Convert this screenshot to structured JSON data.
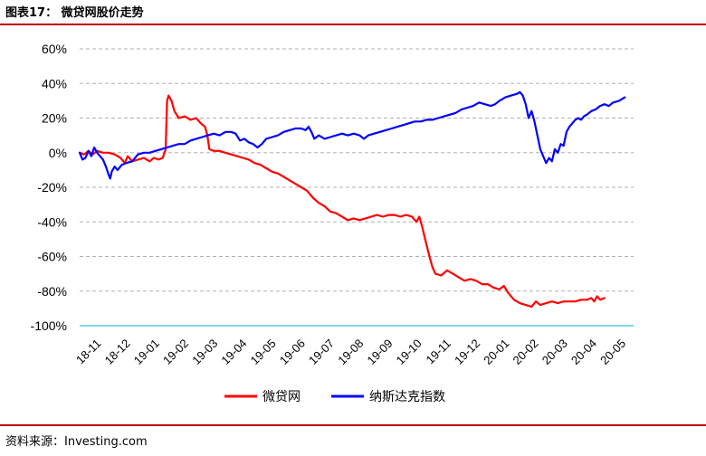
{
  "figure": {
    "title": "图表17：  微贷网股价走势",
    "source": "资料来源：Investing.com"
  },
  "chart_data": {
    "type": "line",
    "ylim": [
      -100,
      60
    ],
    "yticks": [
      60,
      40,
      20,
      0,
      -20,
      -40,
      -60,
      -80,
      -100
    ],
    "ytick_labels": [
      "60%",
      "40%",
      "20%",
      "0%",
      "-20%",
      "-40%",
      "-60%",
      "-80%",
      "-100%"
    ],
    "xlim": [
      0,
      19
    ],
    "x_tick_labels": [
      "18-11",
      "18-12",
      "19-01",
      "19-02",
      "19-03",
      "19-04",
      "19-05",
      "19-06",
      "19-07",
      "19-08",
      "19-09",
      "19-10",
      "19-11",
      "19-12",
      "20-01",
      "20-02",
      "20-03",
      "20-04",
      "20-05"
    ],
    "grid": "horizontal-dashed",
    "legend_position": "bottom-center",
    "series": [
      {
        "name": "微贷网",
        "color": "#ff0000",
        "points": [
          [
            0.0,
            0
          ],
          [
            0.15,
            -1
          ],
          [
            0.3,
            1
          ],
          [
            0.45,
            -1
          ],
          [
            0.6,
            1
          ],
          [
            0.8,
            0
          ],
          [
            1.0,
            0
          ],
          [
            1.2,
            -1
          ],
          [
            1.4,
            -3
          ],
          [
            1.55,
            -6
          ],
          [
            1.65,
            -2
          ],
          [
            1.8,
            -5
          ],
          [
            2.0,
            -4
          ],
          [
            2.2,
            -3
          ],
          [
            2.4,
            -5
          ],
          [
            2.55,
            -3
          ],
          [
            2.7,
            -4
          ],
          [
            2.85,
            -3
          ],
          [
            2.95,
            2
          ],
          [
            3.0,
            30
          ],
          [
            3.05,
            33
          ],
          [
            3.15,
            30
          ],
          [
            3.25,
            24
          ],
          [
            3.4,
            20
          ],
          [
            3.6,
            21
          ],
          [
            3.8,
            19
          ],
          [
            4.0,
            20
          ],
          [
            4.15,
            17
          ],
          [
            4.3,
            15
          ],
          [
            4.38,
            10
          ],
          [
            4.45,
            2
          ],
          [
            4.6,
            1
          ],
          [
            4.8,
            1
          ],
          [
            5.0,
            0
          ],
          [
            5.2,
            -1
          ],
          [
            5.4,
            -2
          ],
          [
            5.6,
            -3
          ],
          [
            5.8,
            -4
          ],
          [
            6.0,
            -6
          ],
          [
            6.2,
            -7
          ],
          [
            6.4,
            -9
          ],
          [
            6.6,
            -11
          ],
          [
            6.8,
            -12
          ],
          [
            7.0,
            -14
          ],
          [
            7.2,
            -16
          ],
          [
            7.4,
            -18
          ],
          [
            7.6,
            -20
          ],
          [
            7.8,
            -22
          ],
          [
            8.0,
            -26
          ],
          [
            8.2,
            -29
          ],
          [
            8.4,
            -31
          ],
          [
            8.6,
            -34
          ],
          [
            8.8,
            -35
          ],
          [
            9.0,
            -37
          ],
          [
            9.2,
            -39
          ],
          [
            9.4,
            -38
          ],
          [
            9.6,
            -39
          ],
          [
            9.8,
            -38
          ],
          [
            10.0,
            -37
          ],
          [
            10.2,
            -36
          ],
          [
            10.4,
            -37
          ],
          [
            10.6,
            -36
          ],
          [
            10.8,
            -36
          ],
          [
            11.0,
            -37
          ],
          [
            11.2,
            -36
          ],
          [
            11.4,
            -37
          ],
          [
            11.55,
            -40
          ],
          [
            11.65,
            -37
          ],
          [
            11.75,
            -43
          ],
          [
            11.85,
            -50
          ],
          [
            12.0,
            -60
          ],
          [
            12.1,
            -66
          ],
          [
            12.2,
            -70
          ],
          [
            12.4,
            -71
          ],
          [
            12.6,
            -68
          ],
          [
            12.8,
            -70
          ],
          [
            13.0,
            -72
          ],
          [
            13.2,
            -74
          ],
          [
            13.4,
            -73
          ],
          [
            13.6,
            -74
          ],
          [
            13.8,
            -76
          ],
          [
            14.0,
            -76
          ],
          [
            14.2,
            -78
          ],
          [
            14.4,
            -79
          ],
          [
            14.55,
            -77
          ],
          [
            14.7,
            -81
          ],
          [
            14.9,
            -85
          ],
          [
            15.1,
            -87
          ],
          [
            15.3,
            -88
          ],
          [
            15.5,
            -89
          ],
          [
            15.65,
            -86
          ],
          [
            15.8,
            -88
          ],
          [
            16.0,
            -87
          ],
          [
            16.2,
            -86
          ],
          [
            16.4,
            -87
          ],
          [
            16.6,
            -86
          ],
          [
            16.8,
            -86
          ],
          [
            17.0,
            -86
          ],
          [
            17.2,
            -85
          ],
          [
            17.4,
            -85
          ],
          [
            17.55,
            -84
          ],
          [
            17.65,
            -86
          ],
          [
            17.75,
            -83
          ],
          [
            17.85,
            -85
          ],
          [
            18.0,
            -84
          ]
        ]
      },
      {
        "name": "纳斯达克指数",
        "color": "#0000ff",
        "points": [
          [
            0.0,
            0
          ],
          [
            0.1,
            -4
          ],
          [
            0.2,
            -3
          ],
          [
            0.3,
            1
          ],
          [
            0.4,
            -2
          ],
          [
            0.5,
            3
          ],
          [
            0.6,
            0
          ],
          [
            0.7,
            -2
          ],
          [
            0.8,
            -4
          ],
          [
            0.9,
            -8
          ],
          [
            1.0,
            -13
          ],
          [
            1.05,
            -15
          ],
          [
            1.1,
            -11
          ],
          [
            1.2,
            -8
          ],
          [
            1.3,
            -10
          ],
          [
            1.45,
            -7
          ],
          [
            1.6,
            -6
          ],
          [
            1.8,
            -5
          ],
          [
            2.0,
            -1
          ],
          [
            2.2,
            0
          ],
          [
            2.4,
            0
          ],
          [
            2.6,
            1
          ],
          [
            2.8,
            2
          ],
          [
            3.0,
            3
          ],
          [
            3.2,
            4
          ],
          [
            3.4,
            5
          ],
          [
            3.6,
            5
          ],
          [
            3.8,
            7
          ],
          [
            4.0,
            8
          ],
          [
            4.2,
            9
          ],
          [
            4.4,
            10
          ],
          [
            4.6,
            11
          ],
          [
            4.8,
            10
          ],
          [
            5.0,
            12
          ],
          [
            5.2,
            12
          ],
          [
            5.35,
            11
          ],
          [
            5.5,
            7
          ],
          [
            5.65,
            8
          ],
          [
            5.8,
            6
          ],
          [
            5.95,
            5
          ],
          [
            6.1,
            3
          ],
          [
            6.25,
            5
          ],
          [
            6.4,
            8
          ],
          [
            6.6,
            9
          ],
          [
            6.8,
            10
          ],
          [
            7.0,
            12
          ],
          [
            7.2,
            13
          ],
          [
            7.4,
            14
          ],
          [
            7.6,
            14
          ],
          [
            7.75,
            13
          ],
          [
            7.85,
            15
          ],
          [
            7.95,
            12
          ],
          [
            8.05,
            8
          ],
          [
            8.2,
            10
          ],
          [
            8.4,
            8
          ],
          [
            8.6,
            9
          ],
          [
            8.8,
            10
          ],
          [
            9.0,
            11
          ],
          [
            9.2,
            10
          ],
          [
            9.4,
            11
          ],
          [
            9.6,
            10
          ],
          [
            9.75,
            8
          ],
          [
            9.9,
            10
          ],
          [
            10.1,
            11
          ],
          [
            10.3,
            12
          ],
          [
            10.5,
            13
          ],
          [
            10.7,
            14
          ],
          [
            10.9,
            15
          ],
          [
            11.1,
            16
          ],
          [
            11.3,
            17
          ],
          [
            11.5,
            18
          ],
          [
            11.7,
            18
          ],
          [
            11.9,
            19
          ],
          [
            12.1,
            19
          ],
          [
            12.3,
            20
          ],
          [
            12.5,
            21
          ],
          [
            12.7,
            22
          ],
          [
            12.9,
            23
          ],
          [
            13.1,
            25
          ],
          [
            13.3,
            26
          ],
          [
            13.5,
            27
          ],
          [
            13.7,
            29
          ],
          [
            13.9,
            28
          ],
          [
            14.1,
            27
          ],
          [
            14.25,
            28
          ],
          [
            14.4,
            30
          ],
          [
            14.6,
            32
          ],
          [
            14.8,
            33
          ],
          [
            15.0,
            34
          ],
          [
            15.1,
            35
          ],
          [
            15.2,
            33
          ],
          [
            15.3,
            28
          ],
          [
            15.4,
            20
          ],
          [
            15.5,
            24
          ],
          [
            15.6,
            18
          ],
          [
            15.7,
            10
          ],
          [
            15.8,
            2
          ],
          [
            15.9,
            -2
          ],
          [
            16.0,
            -6
          ],
          [
            16.1,
            -3
          ],
          [
            16.2,
            -5
          ],
          [
            16.3,
            2
          ],
          [
            16.4,
            0
          ],
          [
            16.5,
            5
          ],
          [
            16.6,
            4
          ],
          [
            16.7,
            12
          ],
          [
            16.8,
            15
          ],
          [
            16.9,
            17
          ],
          [
            17.0,
            19
          ],
          [
            17.1,
            20
          ],
          [
            17.2,
            19
          ],
          [
            17.3,
            21
          ],
          [
            17.4,
            22
          ],
          [
            17.55,
            24
          ],
          [
            17.7,
            25
          ],
          [
            17.85,
            27
          ],
          [
            18.0,
            28
          ],
          [
            18.15,
            27
          ],
          [
            18.3,
            29
          ],
          [
            18.5,
            30
          ],
          [
            18.7,
            32
          ]
        ]
      }
    ]
  }
}
